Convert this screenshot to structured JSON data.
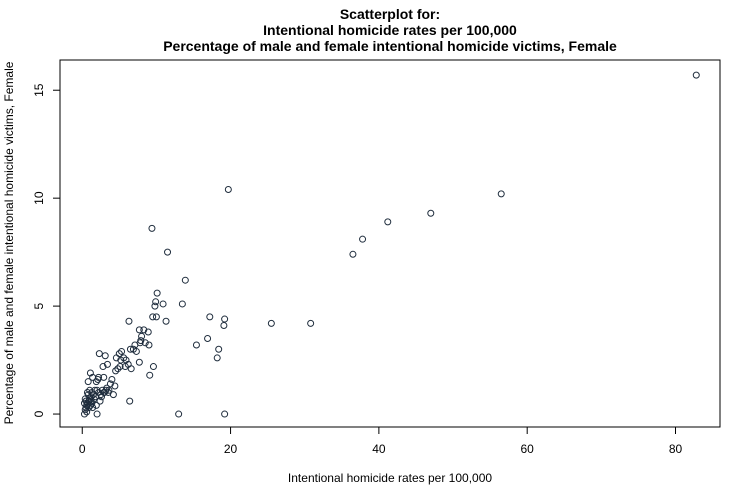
{
  "chart_data": {
    "type": "scatter",
    "title": [
      "Scatterplot for:",
      "Intentional homicide rates per 100,000",
      "Percentage of male and female intentional homicide victims, Female"
    ],
    "xlabel": "Intentional homicide rates per 100,000",
    "ylabel": "Percentage of male and female intentional homicide victims, Female",
    "xlim": [
      -3,
      86
    ],
    "ylim": [
      -0.6,
      16.4
    ],
    "xticks": [
      0,
      20,
      40,
      60,
      80
    ],
    "yticks": [
      0,
      5,
      10,
      15
    ],
    "grid": false,
    "points": [
      [
        82.8,
        15.7
      ],
      [
        56.5,
        10.2
      ],
      [
        47.0,
        9.3
      ],
      [
        41.2,
        8.9
      ],
      [
        37.8,
        8.1
      ],
      [
        36.5,
        7.4
      ],
      [
        19.7,
        10.4
      ],
      [
        9.4,
        8.6
      ],
      [
        11.5,
        7.5
      ],
      [
        13.9,
        6.2
      ],
      [
        30.8,
        4.2
      ],
      [
        25.5,
        4.2
      ],
      [
        19.2,
        4.4
      ],
      [
        19.1,
        4.1
      ],
      [
        17.2,
        4.5
      ],
      [
        16.9,
        3.5
      ],
      [
        15.4,
        3.2
      ],
      [
        18.4,
        3.0
      ],
      [
        18.2,
        2.6
      ],
      [
        13.5,
        5.1
      ],
      [
        13.0,
        0.0
      ],
      [
        19.2,
        0.0
      ],
      [
        10.1,
        5.6
      ],
      [
        9.9,
        5.2
      ],
      [
        9.8,
        5.0
      ],
      [
        10.9,
        5.1
      ],
      [
        9.5,
        4.5
      ],
      [
        10.0,
        4.5
      ],
      [
        11.3,
        4.3
      ],
      [
        6.3,
        4.3
      ],
      [
        8.9,
        3.8
      ],
      [
        8.3,
        3.9
      ],
      [
        7.7,
        3.9
      ],
      [
        8.0,
        3.6
      ],
      [
        7.9,
        3.4
      ],
      [
        7.8,
        3.3
      ],
      [
        8.5,
        3.3
      ],
      [
        9.0,
        3.2
      ],
      [
        7.1,
        3.2
      ],
      [
        7.3,
        2.9
      ],
      [
        6.5,
        3.0
      ],
      [
        6.9,
        3.0
      ],
      [
        5.3,
        2.9
      ],
      [
        5.6,
        2.6
      ],
      [
        5.9,
        2.5
      ],
      [
        6.2,
        2.3
      ],
      [
        5.8,
        2.2
      ],
      [
        6.6,
        2.1
      ],
      [
        5.2,
        2.5
      ],
      [
        4.8,
        2.1
      ],
      [
        5.1,
        2.2
      ],
      [
        4.5,
        2.0
      ],
      [
        4.6,
        2.6
      ],
      [
        5.0,
        2.8
      ],
      [
        2.3,
        2.8
      ],
      [
        3.1,
        2.7
      ],
      [
        3.4,
        2.3
      ],
      [
        2.8,
        2.2
      ],
      [
        2.9,
        1.7
      ],
      [
        2.2,
        1.7
      ],
      [
        1.9,
        1.5
      ],
      [
        2.1,
        1.6
      ],
      [
        1.1,
        1.9
      ],
      [
        1.4,
        1.7
      ],
      [
        0.8,
        1.5
      ],
      [
        3.8,
        1.4
      ],
      [
        4.0,
        1.6
      ],
      [
        4.4,
        1.3
      ],
      [
        7.7,
        2.4
      ],
      [
        9.1,
        1.8
      ],
      [
        9.6,
        2.2
      ],
      [
        6.4,
        0.6
      ],
      [
        4.2,
        0.9
      ],
      [
        3.6,
        1.1
      ],
      [
        3.3,
        1.2
      ],
      [
        3.0,
        1.0
      ],
      [
        2.7,
        1.1
      ],
      [
        2.5,
        0.9
      ],
      [
        2.0,
        1.1
      ],
      [
        1.7,
        1.1
      ],
      [
        1.5,
        0.9
      ],
      [
        1.3,
        1.0
      ],
      [
        1.2,
        0.8
      ],
      [
        1.0,
        0.7
      ],
      [
        0.9,
        0.6
      ],
      [
        0.8,
        0.9
      ],
      [
        0.7,
        0.5
      ],
      [
        0.6,
        0.4
      ],
      [
        0.5,
        0.6
      ],
      [
        0.5,
        0.3
      ],
      [
        0.4,
        0.2
      ],
      [
        0.3,
        0.5
      ],
      [
        0.3,
        0.0
      ],
      [
        0.6,
        0.1
      ],
      [
        0.9,
        0.3
      ],
      [
        1.1,
        0.4
      ],
      [
        1.3,
        0.5
      ],
      [
        1.6,
        0.7
      ],
      [
        1.8,
        0.8
      ],
      [
        2.0,
        0.0
      ],
      [
        2.4,
        0.6
      ],
      [
        2.6,
        0.8
      ],
      [
        2.9,
        1.0
      ],
      [
        3.2,
        1.1
      ],
      [
        3.5,
        1.0
      ],
      [
        0.7,
        1.0
      ],
      [
        1.0,
        1.1
      ],
      [
        1.4,
        0.3
      ],
      [
        1.9,
        0.4
      ],
      [
        0.4,
        0.7
      ],
      [
        1.2,
        0.6
      ],
      [
        2.2,
        1.0
      ]
    ]
  }
}
